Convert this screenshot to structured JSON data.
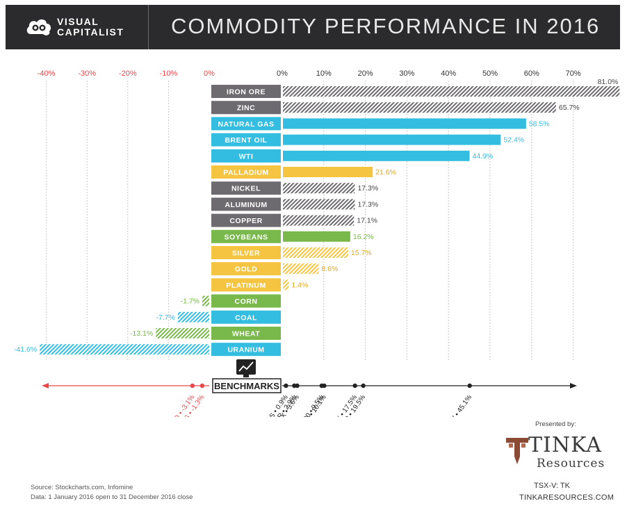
{
  "header": {
    "logo_line1": "VISUAL",
    "logo_line2": "CAPITALIST",
    "title": "COMMODITY PERFORMANCE IN 2016"
  },
  "chart_data": {
    "type": "bar",
    "orientation": "horizontal",
    "unit": "%",
    "negative_axis": {
      "ticks": [
        "-40%",
        "-30%",
        "-20%",
        "-10%",
        "0%"
      ],
      "range": [
        -41.6,
        0
      ]
    },
    "positive_axis": {
      "ticks": [
        "0%",
        "10%",
        "20%",
        "30%",
        "40%",
        "50%",
        "60%",
        "70%"
      ],
      "range": [
        0,
        81
      ]
    },
    "categories": [
      "IRON ORE",
      "ZINC",
      "NATURAL GAS",
      "BRENT OIL",
      "WTI",
      "PALLADIUM",
      "NICKEL",
      "ALUMINUM",
      "COPPER",
      "SOYBEANS",
      "SILVER",
      "GOLD",
      "PLATINUM",
      "CORN",
      "COAL",
      "WHEAT",
      "URANIUM"
    ],
    "values": [
      81.0,
      65.7,
      58.5,
      52.4,
      44.9,
      21.6,
      17.3,
      17.3,
      17.1,
      16.2,
      15.7,
      8.6,
      1.4,
      -1.7,
      -7.7,
      -13.1,
      -41.6
    ],
    "value_labels": [
      "81.0%",
      "65.7%",
      "58.5%",
      "52.4%",
      "44.9%",
      "21.6%",
      "17.3%",
      "17.3%",
      "17.1%",
      "16.2%",
      "15.7%",
      "8.6%",
      "1.4%",
      "-1.7%",
      "-7.7%",
      "-13.1%",
      "-41.6%"
    ],
    "groups": [
      "metal",
      "metal",
      "energy",
      "energy",
      "energy",
      "precious",
      "metal",
      "metal",
      "metal",
      "agri",
      "precious",
      "precious",
      "precious",
      "agri",
      "energy",
      "agri",
      "energy"
    ],
    "group_colors": {
      "metal": "#6d6b70",
      "energy": "#33bde0",
      "precious": "#f5c542",
      "agri": "#79b84a"
    },
    "benchmarks": {
      "title": "BENCHMARKS",
      "negative_color": "#e8474c",
      "items": [
        {
          "name": "EURO",
          "value": -3.1,
          "label": "EURO • -3.1%"
        },
        {
          "name": "10-YR TREASURIES",
          "value": -1.3,
          "label": "10-YR TREASURIES • -1.3%"
        },
        {
          "name": "BONDS",
          "value": 0.9,
          "label": "BONDS • 0.9%"
        },
        {
          "name": "CANADIAN DOLLAR",
          "value": 2.9,
          "label": "CANADIAN DOLLAR • 2.9%"
        },
        {
          "name": "US DOLLAR INDEX",
          "value": 3.6,
          "label": "US DOLLAR INDEX • 3.6%"
        },
        {
          "name": "S&P 500",
          "value": 9.5,
          "label": "S&P 500 • 9.5%"
        },
        {
          "name": "GS COMMODITY INDEX",
          "value": 10.1,
          "label": "GS COMMODITY INDEX • 10.1%"
        },
        {
          "name": "TSX",
          "value": 17.5,
          "label": "TSX • 17.5%"
        },
        {
          "name": "RUSSELL 2000",
          "value": 19.5,
          "label": "RUSSELL 2000 • 19.5%"
        },
        {
          "name": "TSX-V",
          "value": 45.1,
          "label": "TSX-V • 45.1%"
        }
      ]
    }
  },
  "footer": {
    "source": "Source: Stockcharts.com, Infomine",
    "data_range": "Data: 1 January 2016 open to 31 December 2016 close",
    "presented_by": "Presented by:",
    "sponsor_name": "TINKA",
    "sponsor_sub": "Resources",
    "ticker": "TSX-V: TK",
    "website": "TINKARESOURCES.COM"
  },
  "colors": {
    "header_bg": "#2b2b2d",
    "negative": "#e8474c",
    "grid": "#c8c8c8"
  }
}
